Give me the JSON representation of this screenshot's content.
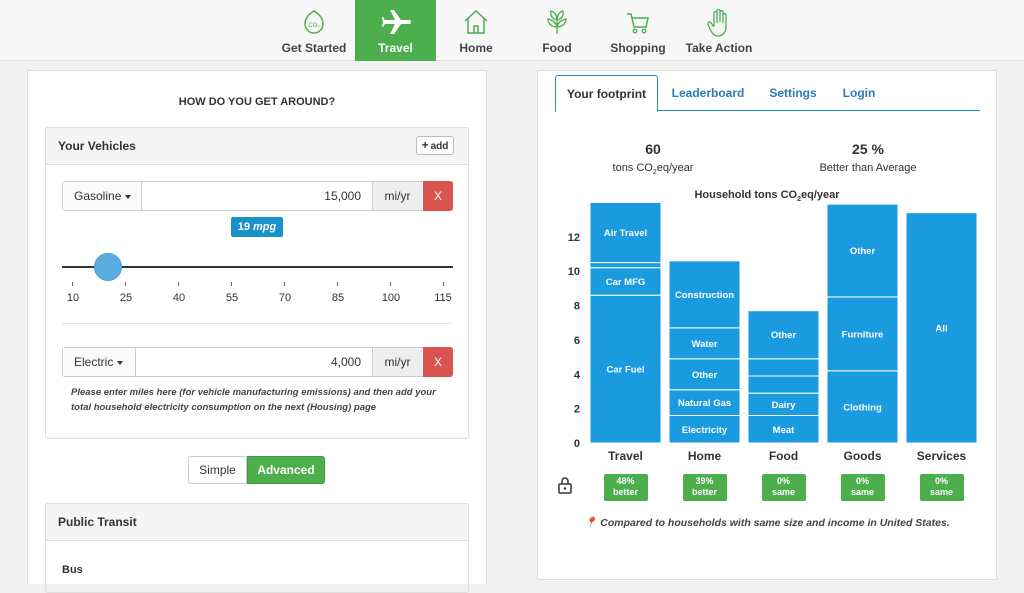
{
  "nav": {
    "items": [
      {
        "label": "Get Started",
        "icon": "co2-icon"
      },
      {
        "label": "Travel",
        "icon": "airplane-icon",
        "active": true
      },
      {
        "label": "Home",
        "icon": "house-icon"
      },
      {
        "label": "Food",
        "icon": "leaf-icon"
      },
      {
        "label": "Shopping",
        "icon": "cart-icon"
      },
      {
        "label": "Take Action",
        "icon": "hand-icon"
      }
    ],
    "co2_glyph": "CO₂"
  },
  "left": {
    "title": "HOW DO YOU GET AROUND?",
    "vehicles": {
      "header": "Your Vehicles",
      "add_label": "add",
      "gasoline": {
        "type": "Gasoline",
        "value": "15,000",
        "unit": "mi/yr",
        "remove": "X"
      },
      "mpg": {
        "value": "19",
        "unit": "mpg"
      },
      "slider": {
        "min": 10,
        "max": 115,
        "current": 19,
        "ticks": [
          "10",
          "25",
          "40",
          "55",
          "70",
          "85",
          "100",
          "115"
        ]
      },
      "electric": {
        "type": "Electric",
        "value": "4,000",
        "unit": "mi/yr",
        "remove": "X"
      },
      "note": "Please enter miles here (for vehicle manufacturing emissions) and then add your total household electricity consumption on the next (Housing) page"
    },
    "mode": {
      "simple": "Simple",
      "advanced": "Advanced",
      "selected": "Advanced"
    },
    "transit": {
      "header": "Public Transit",
      "bus": "Bus"
    }
  },
  "right": {
    "tabs": [
      "Your footprint",
      "Leaderboard",
      "Settings",
      "Login"
    ],
    "active_tab": "Your footprint",
    "total": {
      "value": "60",
      "label_pre": "tons CO",
      "label_sub": "2",
      "label_post": "eq/year"
    },
    "comparison": {
      "value": "25 %",
      "label": "Better than Average"
    },
    "chart_title": {
      "pre": "Household tons CO",
      "sub": "2",
      "post": "eq/year"
    },
    "footnote": "Compared to households with same size and income in United States."
  },
  "chart_data": {
    "type": "bar",
    "stacked": true,
    "title": "Household tons CO2eq/year",
    "ylim": [
      0,
      13.5
    ],
    "yticks": [
      "0",
      "2",
      "4",
      "6",
      "8",
      "10",
      "12"
    ],
    "categories": [
      "Travel",
      "Home",
      "Food",
      "Goods",
      "Services"
    ],
    "color": "#1a9be0",
    "segments": [
      [
        {
          "label": "Car Fuel",
          "value": 8.6
        },
        {
          "label": "Car MFG",
          "value": 1.6
        },
        {
          "label": "",
          "value": 0.3
        },
        {
          "label": "Air Travel",
          "value": 3.5
        }
      ],
      [
        {
          "label": "Electricity",
          "value": 1.6
        },
        {
          "label": "Natural Gas",
          "value": 1.5
        },
        {
          "label": "Other",
          "value": 1.8
        },
        {
          "label": "Water",
          "value": 1.8
        },
        {
          "label": "Construction",
          "value": 3.9
        }
      ],
      [
        {
          "label": "Meat",
          "value": 1.6
        },
        {
          "label": "Dairy",
          "value": 1.3
        },
        {
          "label": "",
          "value": 1.0
        },
        {
          "label": "",
          "value": 1.0
        },
        {
          "label": "Other",
          "value": 2.8
        }
      ],
      [
        {
          "label": "Clothing",
          "value": 4.2
        },
        {
          "label": "Furniture",
          "value": 4.3
        },
        {
          "label": "Other",
          "value": 5.4
        }
      ],
      [
        {
          "label": "All",
          "value": 13.4
        }
      ]
    ],
    "badges": [
      {
        "pct": "48%",
        "text": "better"
      },
      {
        "pct": "39%",
        "text": "better"
      },
      {
        "pct": "0%",
        "text": "same"
      },
      {
        "pct": "0%",
        "text": "same"
      },
      {
        "pct": "0%",
        "text": "same"
      }
    ]
  }
}
